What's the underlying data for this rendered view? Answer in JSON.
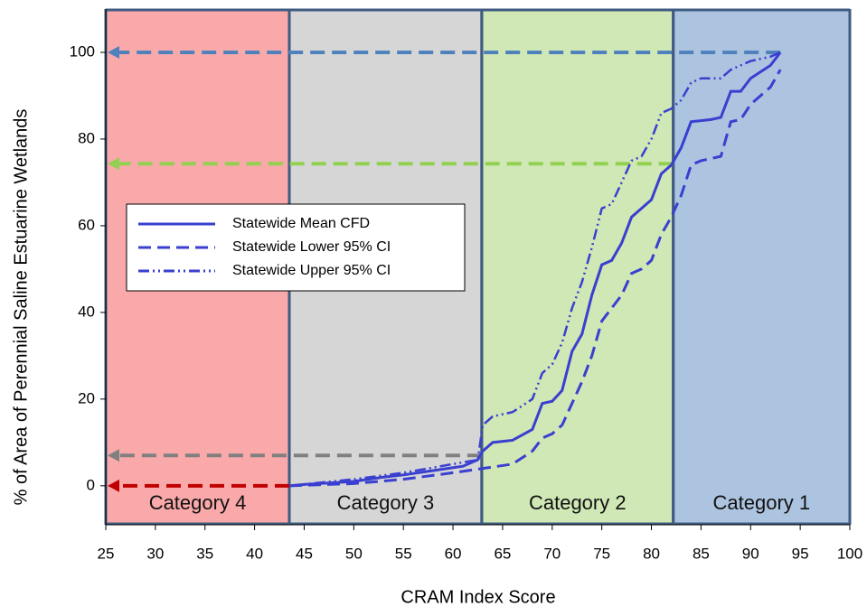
{
  "chart_data": {
    "type": "line",
    "x_label": "CRAM Index Score",
    "y_label": "% of Area of Perennial Saline Estuarine Wetlands",
    "xlim": [
      25,
      100
    ],
    "ylim": [
      -9,
      110
    ],
    "xticks": [
      25,
      30,
      35,
      40,
      45,
      50,
      55,
      60,
      65,
      70,
      75,
      80,
      85,
      90,
      95,
      100
    ],
    "yticks": [
      0,
      20,
      40,
      60,
      80,
      100
    ],
    "regions": [
      {
        "label": "Category 4",
        "start": 25,
        "end": 43.5,
        "color": "#faa9aa"
      },
      {
        "label": "Category 3",
        "start": 43.5,
        "end": 62.9,
        "color": "#d6d6d6"
      },
      {
        "label": "Category 2",
        "start": 62.9,
        "end": 82.2,
        "color": "#d0e8b6"
      },
      {
        "label": "Category 1",
        "start": 82.2,
        "end": 100,
        "color": "#adc4e0"
      }
    ],
    "reference_lines": [
      {
        "y": 100,
        "x_from": 93,
        "color": "#4f81bd"
      },
      {
        "y": 74.3,
        "x_from": 82.2,
        "color": "#92d050"
      },
      {
        "y": 7,
        "x_from": 62.9,
        "color": "#808080"
      },
      {
        "y": 0,
        "x_from": 43.5,
        "color": "#c00000"
      }
    ],
    "series": [
      {
        "name": "Statewide Mean CFD",
        "color": "#3a3fd0",
        "style": "solid",
        "x": [
          43.5,
          45,
          50,
          53,
          55,
          58,
          61,
          62.5,
          63,
          64,
          66,
          68,
          69,
          70,
          71,
          72,
          73,
          74,
          75,
          76,
          77,
          78,
          79,
          80,
          81,
          82,
          83,
          84,
          86,
          87,
          88,
          89,
          90,
          92,
          93
        ],
        "values": [
          0,
          0.3,
          1,
          2,
          2.5,
          3.5,
          4.5,
          6,
          8,
          10,
          10.5,
          13,
          19,
          19.5,
          22,
          31,
          35,
          44,
          51,
          52,
          56,
          62,
          64,
          66,
          72,
          74,
          78,
          84,
          84.5,
          85,
          91,
          91,
          94,
          97,
          100
        ]
      },
      {
        "name": "Statewide Lower 95% CI",
        "color": "#3a3fd0",
        "style": "dashed",
        "x": [
          43.5,
          50,
          55,
          60,
          63,
          66,
          68,
          69,
          70,
          71,
          72,
          73,
          74,
          75,
          76,
          77,
          78,
          79,
          80,
          81,
          82,
          83,
          84,
          85,
          87,
          88,
          89,
          90,
          92,
          93
        ],
        "values": [
          0,
          0.5,
          1.5,
          3,
          4,
          5,
          8,
          11,
          12,
          14,
          19,
          24,
          30,
          38,
          41,
          44,
          49,
          50,
          52,
          58,
          62,
          67,
          74,
          75,
          76,
          84,
          84.5,
          88,
          92,
          96
        ]
      },
      {
        "name": "Statewide Upper 95% CI",
        "color": "#3a3fd0",
        "style": "dashdot",
        "x": [
          43.5,
          50,
          55,
          60,
          62.5,
          63,
          64,
          66,
          68,
          69,
          70,
          71,
          72,
          73,
          74,
          75,
          76,
          77,
          78,
          79,
          80,
          81,
          82,
          83,
          84,
          85,
          87,
          88,
          90,
          92,
          93
        ],
        "values": [
          0,
          1.5,
          3,
          5,
          6,
          14,
          16,
          17,
          20,
          26,
          28,
          33,
          41,
          47,
          55,
          64,
          65,
          70,
          75,
          76,
          80,
          86,
          87,
          89,
          93,
          94,
          94,
          96,
          98,
          99,
          100
        ]
      }
    ]
  }
}
